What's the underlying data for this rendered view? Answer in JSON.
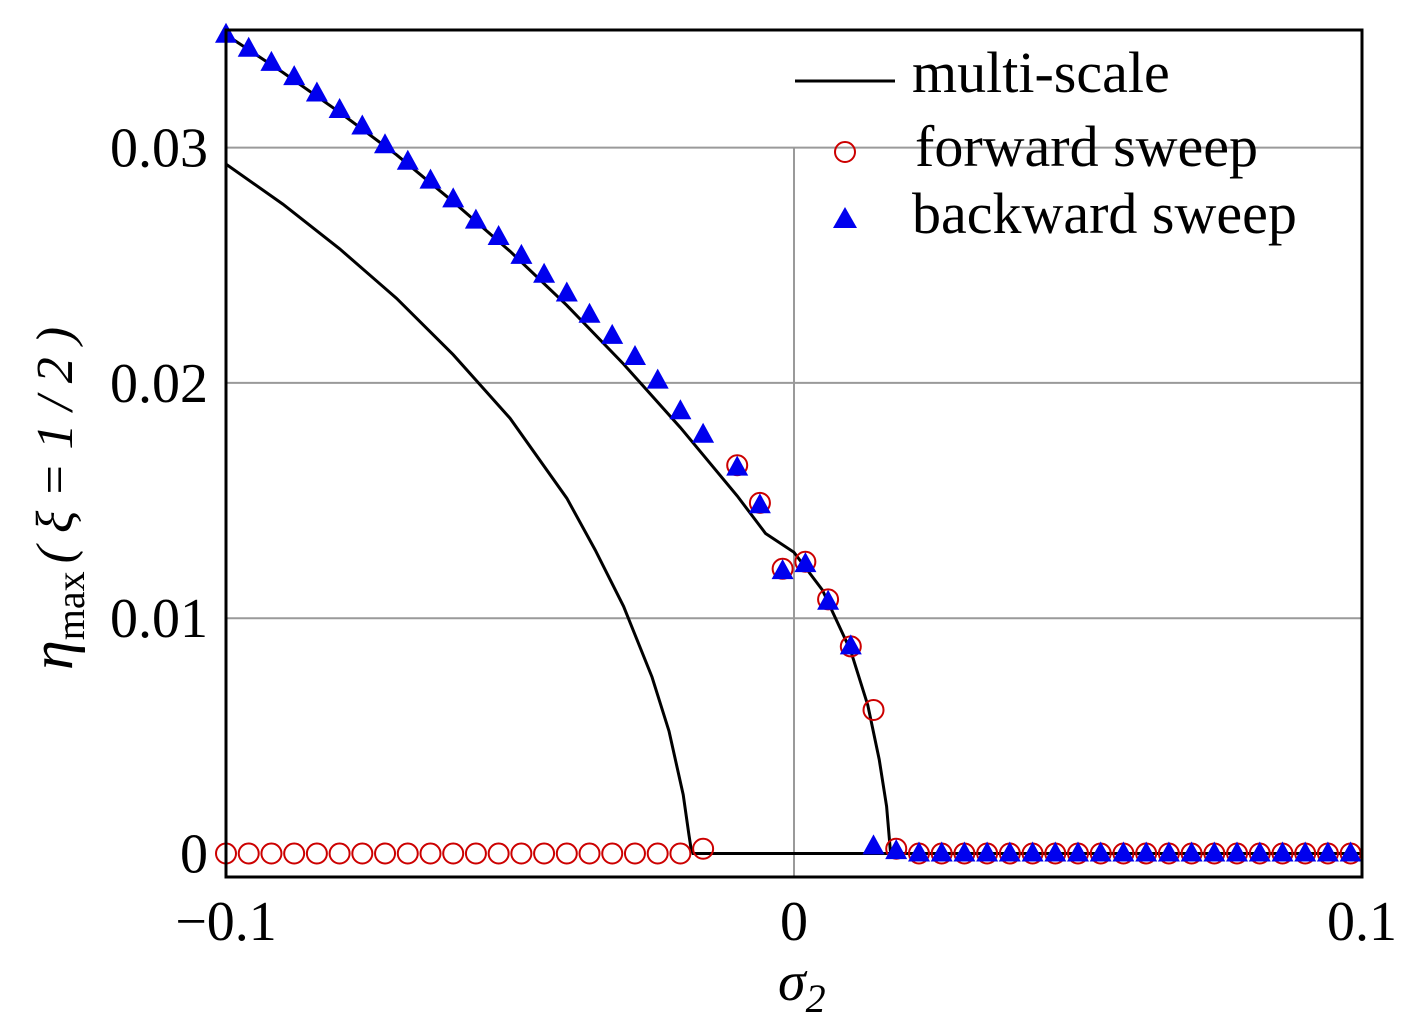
{
  "chart_data": {
    "type": "scatter",
    "xlabel": {
      "base": "σ",
      "sub": "2"
    },
    "ylabel": {
      "base": "η",
      "sub": "max",
      "suffix": "( ξ = 1 / 2 )"
    },
    "xlim": [
      -0.1,
      0.1
    ],
    "ylim": [
      -0.001,
      0.035
    ],
    "xticks": [
      {
        "value": -0.1,
        "label": "−0.1"
      },
      {
        "value": 0,
        "label": "0"
      },
      {
        "value": 0.1,
        "label": "0.1"
      }
    ],
    "yticks": [
      {
        "value": 0,
        "label": "0"
      },
      {
        "value": 0.01,
        "label": "0.01"
      },
      {
        "value": 0.02,
        "label": "0.02"
      },
      {
        "value": 0.03,
        "label": "0.03"
      }
    ],
    "grid": true,
    "legend_position": "top-right",
    "series": [
      {
        "name": "multi-scale",
        "kind": "line",
        "color": "#000000",
        "segments": [
          {
            "x": [
              -0.1,
              -0.09,
              -0.08,
              -0.07,
              -0.06,
              -0.05,
              -0.04,
              -0.035,
              -0.03,
              -0.025,
              -0.022,
              -0.0195,
              -0.0185,
              -0.018
            ],
            "y": [
              0.0293,
              0.0276,
              0.0257,
              0.0236,
              0.0212,
              0.0185,
              0.0151,
              0.0129,
              0.0105,
              0.0075,
              0.0052,
              0.0025,
              0.0008,
              0.0
            ]
          },
          {
            "x": [
              -0.018,
              0.017
            ],
            "y": [
              0.0,
              0.0
            ]
          },
          {
            "x": [
              -0.1,
              -0.09,
              -0.08,
              -0.07,
              -0.06,
              -0.05,
              -0.04,
              -0.03,
              -0.02,
              -0.01,
              -0.005,
              0.0,
              0.005,
              0.01,
              0.013,
              0.015,
              0.0163,
              0.017
            ],
            "y": [
              0.0348,
              0.0332,
              0.0315,
              0.0297,
              0.0277,
              0.0256,
              0.0233,
              0.0208,
              0.0181,
              0.0152,
              0.0136,
              0.0128,
              0.0112,
              0.0086,
              0.0063,
              0.004,
              0.002,
              0.0
            ]
          },
          {
            "x": [
              0.017,
              0.1
            ],
            "y": [
              0.0,
              0.0
            ]
          }
        ]
      },
      {
        "name": "forward sweep",
        "kind": "scatter",
        "marker": "circle",
        "color": "#cc0000",
        "x": [
          -0.1,
          -0.096,
          -0.092,
          -0.088,
          -0.084,
          -0.08,
          -0.076,
          -0.072,
          -0.068,
          -0.064,
          -0.06,
          -0.056,
          -0.052,
          -0.048,
          -0.044,
          -0.04,
          -0.036,
          -0.032,
          -0.028,
          -0.024,
          -0.02,
          -0.016,
          -0.01,
          -0.006,
          -0.002,
          0.002,
          0.006,
          0.01,
          0.014,
          0.018,
          0.022,
          0.026,
          0.03,
          0.034,
          0.038,
          0.042,
          0.046,
          0.05,
          0.054,
          0.058,
          0.062,
          0.066,
          0.07,
          0.074,
          0.078,
          0.082,
          0.086,
          0.09,
          0.094,
          0.098
        ],
        "y": [
          0.0,
          0.0,
          0.0,
          0.0,
          0.0,
          0.0,
          0.0,
          0.0,
          0.0,
          0.0,
          0.0,
          0.0,
          0.0,
          0.0,
          0.0,
          0.0,
          0.0,
          0.0,
          0.0,
          0.0,
          0.0,
          0.0002,
          0.0165,
          0.0149,
          0.0121,
          0.0124,
          0.0108,
          0.0088,
          0.0061,
          0.0002,
          0.0,
          0.0,
          0.0,
          0.0,
          0.0,
          0.0,
          0.0,
          0.0,
          0.0,
          0.0,
          0.0,
          0.0,
          0.0,
          0.0,
          0.0,
          0.0,
          0.0,
          0.0,
          0.0,
          0.0
        ]
      },
      {
        "name": "backward sweep",
        "kind": "scatter",
        "marker": "triangle",
        "color": "#0000ee",
        "x": [
          -0.1,
          -0.096,
          -0.092,
          -0.088,
          -0.084,
          -0.08,
          -0.076,
          -0.072,
          -0.068,
          -0.064,
          -0.06,
          -0.056,
          -0.052,
          -0.048,
          -0.044,
          -0.04,
          -0.036,
          -0.032,
          -0.028,
          -0.024,
          -0.02,
          -0.016,
          -0.01,
          -0.006,
          -0.002,
          0.002,
          0.006,
          0.01,
          0.014,
          0.018,
          0.022,
          0.026,
          0.03,
          0.034,
          0.038,
          0.042,
          0.046,
          0.05,
          0.054,
          0.058,
          0.062,
          0.066,
          0.07,
          0.074,
          0.078,
          0.082,
          0.086,
          0.09,
          0.094,
          0.098
        ],
        "y": [
          0.0348,
          0.0342,
          0.0336,
          0.033,
          0.0323,
          0.0316,
          0.0309,
          0.0301,
          0.0294,
          0.0286,
          0.0278,
          0.0269,
          0.0262,
          0.0254,
          0.0246,
          0.0238,
          0.0229,
          0.022,
          0.0211,
          0.0201,
          0.0188,
          0.0178,
          0.0164,
          0.0148,
          0.012,
          0.0123,
          0.0107,
          0.0088,
          0.0003,
          0.0001,
          0.0,
          0.0,
          0.0,
          0.0,
          0.0,
          0.0,
          0.0,
          0.0,
          0.0,
          0.0,
          0.0,
          0.0,
          0.0,
          0.0,
          0.0,
          0.0,
          0.0,
          0.0,
          0.0,
          0.0
        ]
      }
    ]
  }
}
